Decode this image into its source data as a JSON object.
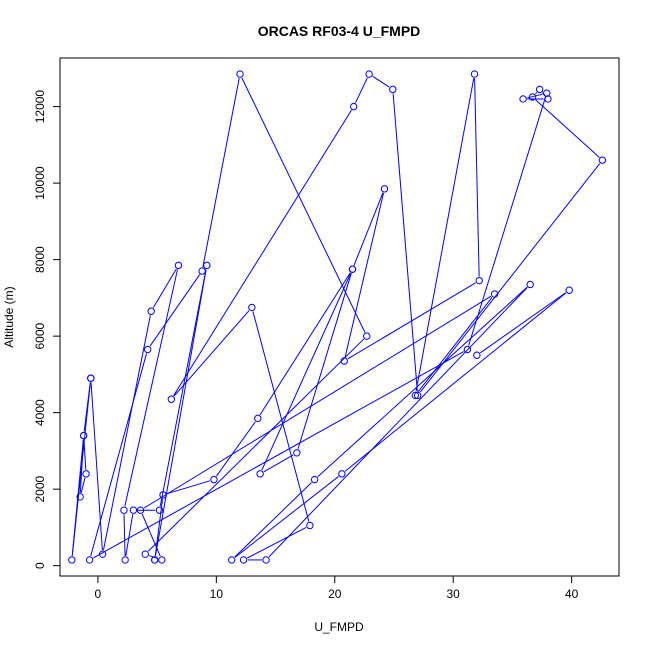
{
  "chart_data": {
    "type": "line",
    "title": "ORCAS RF03-4 U_FMPD",
    "xlabel": "U_FMPD",
    "ylabel": "Altitude (m)",
    "xlim": [
      -3.2,
      44.0
    ],
    "ylim": [
      -270,
      13270
    ],
    "x_ticks": [
      0,
      10,
      20,
      30,
      40
    ],
    "y_ticks": [
      0,
      2000,
      4000,
      6000,
      8000,
      10000,
      12000
    ],
    "x_tick_labels": [
      "0",
      "10",
      "20",
      "30",
      "40"
    ],
    "y_tick_labels": [
      "0",
      "2000",
      "4000",
      "6000",
      "8000",
      "10000",
      "12000"
    ],
    "grid": false,
    "series": [
      {
        "color": "#0000ff",
        "marker": "open-circle",
        "x": [
          -0.6,
          -1.2,
          -1.5,
          -1.0,
          -1.2,
          -2.2,
          -0.6,
          0.4,
          4.5,
          6.8,
          2.2,
          2.3,
          3.0,
          5.2,
          9.2,
          4.8,
          4.8,
          5.5,
          9.8,
          13.5,
          21.5,
          13.7,
          16.8,
          21.5,
          24.2,
          20.8,
          32.2,
          31.8,
          26.8,
          33.5,
          3.6,
          5.4,
          4.0,
          22.7,
          12.0,
          8.8,
          4.2,
          -0.7,
          31.2,
          37.9,
          35.9,
          38.0,
          37.3,
          36.7,
          42.6,
          27.0,
          24.9,
          22.9,
          21.6,
          6.2,
          13.0,
          17.9,
          12.3,
          14.2,
          36.5,
          18.3,
          11.3,
          20.6,
          39.8,
          32.0
        ]
      }
    ]
  }
}
